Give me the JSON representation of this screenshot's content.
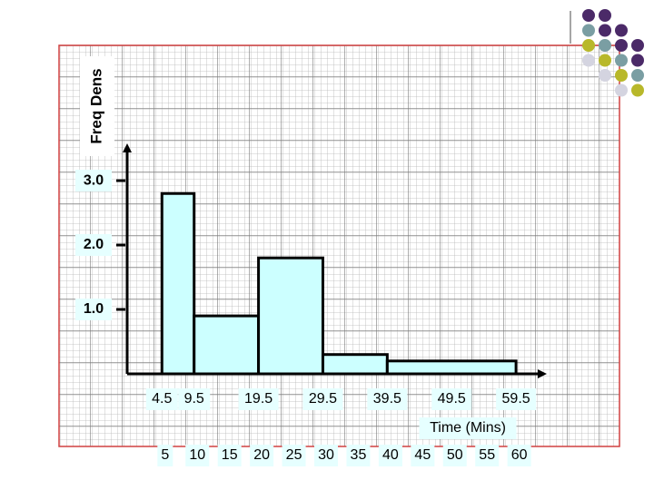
{
  "chart_data": {
    "type": "histogram",
    "ylabel": "Freq Dens",
    "xlabel": "Time (Mins)",
    "bins": [
      4.5,
      9.5,
      19.5,
      29.5,
      39.5,
      59.5
    ],
    "values": [
      2.8,
      0.9,
      1.8,
      0.3,
      0.2
    ],
    "color": "#ccffff",
    "xlim": [
      -0.9,
      64
    ],
    "ylim": [
      0,
      3.55
    ],
    "yticks": [
      {
        "value": 1,
        "label": "1.0"
      },
      {
        "value": 2,
        "label": "2.0"
      },
      {
        "value": 3,
        "label": "3.0"
      }
    ],
    "xticks": [
      4.5,
      9.5,
      19.5,
      29.5,
      39.5,
      49.5,
      59.5
    ],
    "x2ticks": [
      5,
      10,
      15,
      20,
      25,
      30,
      35,
      40,
      45,
      50,
      55,
      60
    ]
  }
}
